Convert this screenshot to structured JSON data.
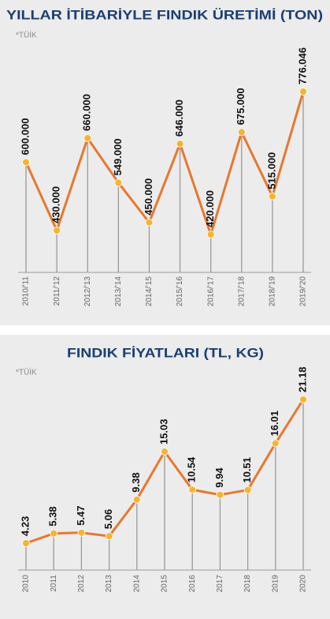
{
  "chart_data": [
    {
      "type": "line",
      "title": "YILLAR İTİBARİYLE FINDIK ÜRETİMİ (TON)",
      "source": "*TÜİK",
      "categories": [
        "2010/'11",
        "2011/'12",
        "2012/'13",
        "2013/'14",
        "2014/'15",
        "2015/'16",
        "2016/'17",
        "2017/'18",
        "2018/'19",
        "2019/'20"
      ],
      "values": [
        600000,
        430000,
        660000,
        549000,
        450000,
        646000,
        420000,
        675000,
        515000,
        776046
      ],
      "value_labels": [
        "600.000",
        "430.000",
        "660.000",
        "549.000",
        "450.000",
        "646.000",
        "420.000",
        "675.000",
        "515.000",
        "776.046"
      ],
      "color": "#e8772e",
      "marker_color": "#f6b431"
    },
    {
      "type": "line",
      "title": "FINDIK FİYATLARI (TL, KG)",
      "source": "*TÜİK",
      "categories": [
        "2010",
        "2011",
        "2012",
        "2013",
        "2014",
        "2015",
        "2016",
        "2017",
        "2018",
        "2019",
        "2020"
      ],
      "values": [
        4.23,
        5.38,
        5.47,
        5.06,
        9.38,
        15.03,
        10.54,
        9.94,
        10.51,
        16.01,
        21.18
      ],
      "color": "#e8772e",
      "marker_color": "#f6b431"
    }
  ]
}
